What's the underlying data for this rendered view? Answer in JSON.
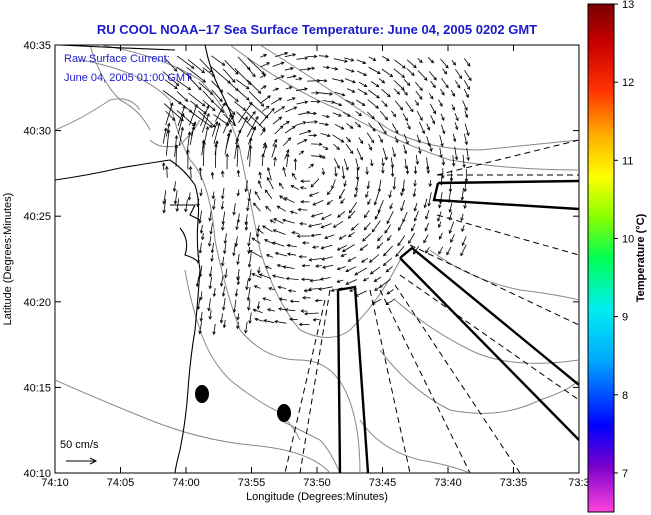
{
  "title": "RU COOL  NOAA–17  Sea Surface Temperature:  June 04, 2005 0202 GMT",
  "legend": {
    "line1": "Raw Surface Current:",
    "line2": "June 04, 2005 01:00 GMT"
  },
  "axes": {
    "xlabel": "Longitude (Degrees:Minutes)",
    "ylabel": "Latitude (Degrees:Minutes)",
    "x_ticks": [
      "74:10",
      "74:05",
      "74:00",
      "73:55",
      "73:50",
      "73:45",
      "73:40",
      "73:35",
      "73:3"
    ],
    "y_ticks": [
      "40:35",
      "40:30",
      "40:25",
      "40:20",
      "40:15",
      "40:10"
    ]
  },
  "scale_label": "50 cm/s",
  "colorbar": {
    "label": "Temperature (°C)",
    "ticks": [
      "13",
      "12",
      "11",
      "10",
      "9",
      "8",
      "7"
    ],
    "min": 6.5,
    "max": 13,
    "colors": [
      "#ff33cc",
      "#6600cc",
      "#0000ff",
      "#00aaff",
      "#00ffff",
      "#00ff66",
      "#66ff00",
      "#ffff00",
      "#ffaa00",
      "#ff3300",
      "#cc0000",
      "#800000"
    ]
  }
}
